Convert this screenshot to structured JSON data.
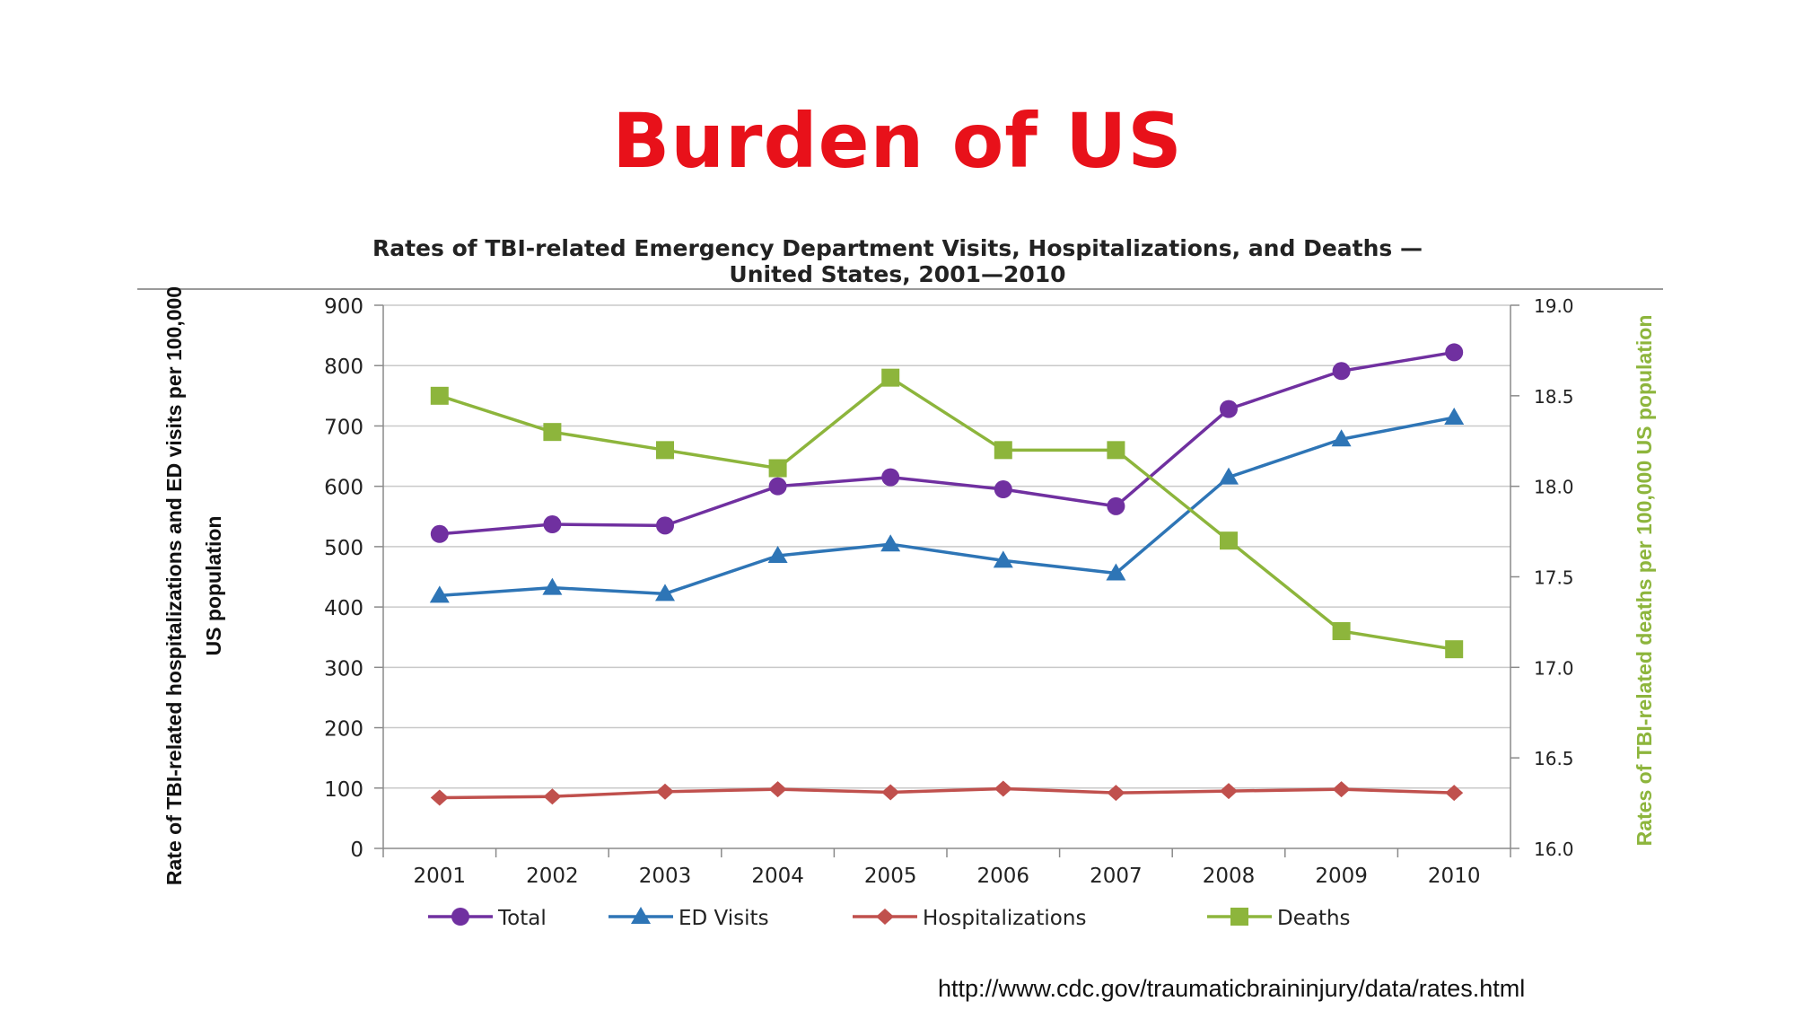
{
  "slide": {
    "title": "Burden of US",
    "source": "http://www.cdc.gov/traumaticbraininjury/data/rates.html"
  },
  "colors": {
    "title": "#e8111a",
    "total": "#7030a0",
    "ed_visits": "#2e75b6",
    "hospitalizations": "#c0504d",
    "deaths": "#8db53c",
    "right_axis_label": "#8db53c"
  },
  "chart_data": {
    "type": "line",
    "title_line1": "Rates of TBI-related Emergency Department Visits, Hospitalizations, and Deaths —",
    "title_line2": "United States, 2001—2010",
    "categories": [
      "2001",
      "2002",
      "2003",
      "2004",
      "2005",
      "2006",
      "2007",
      "2008",
      "2009",
      "2010"
    ],
    "ylabel_line1": "Rate of TBI-related hospitalizations and ED visits per 100,000",
    "ylabel_line2": "US population",
    "y2label": "Rates of TBI-related deaths per 100,000 US population",
    "ylim": [
      0,
      900
    ],
    "yticks": [
      "0",
      "100",
      "200",
      "300",
      "400",
      "500",
      "600",
      "700",
      "800",
      "900"
    ],
    "y2lim": [
      16.0,
      19.0
    ],
    "y2ticks": [
      "16.0",
      "16.5",
      "17.0",
      "17.5",
      "18.0",
      "18.5",
      "19.0"
    ],
    "grid": true,
    "legend_position": "bottom",
    "series": [
      {
        "name": "Total",
        "axis": "left",
        "marker": "circle",
        "color": "#7030a0",
        "values": [
          521,
          537,
          535,
          600,
          615,
          595,
          567,
          728,
          791,
          822
        ]
      },
      {
        "name": "ED Visits",
        "axis": "left",
        "marker": "triangle",
        "color": "#2e75b6",
        "values": [
          419,
          432,
          422,
          485,
          504,
          477,
          456,
          615,
          678,
          714
        ]
      },
      {
        "name": "Hospitalizations",
        "axis": "left",
        "marker": "diamond",
        "color": "#c0504d",
        "values": [
          84,
          86,
          94,
          98,
          93,
          99,
          92,
          95,
          98,
          92
        ]
      },
      {
        "name": "Deaths",
        "axis": "right",
        "marker": "square",
        "color": "#8db53c",
        "values": [
          18.5,
          18.3,
          18.2,
          18.1,
          18.6,
          18.2,
          18.2,
          17.7,
          17.2,
          17.1
        ]
      }
    ]
  }
}
